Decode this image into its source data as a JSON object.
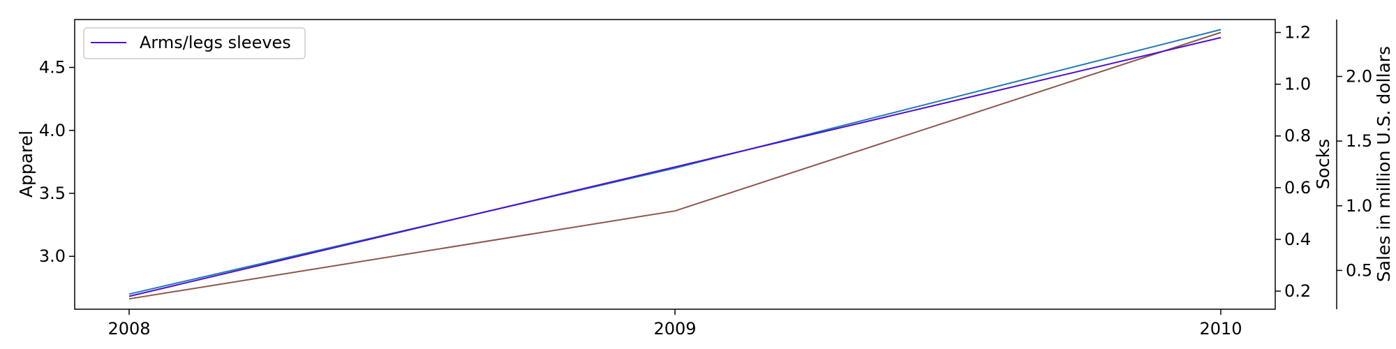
{
  "chart_data": {
    "type": "line",
    "x": [
      "2008",
      "2009",
      "2010"
    ],
    "xticks": [
      "2008",
      "2009",
      "2010"
    ],
    "axes": {
      "left": {
        "label": "Apparel",
        "ylim": [
          2.58,
          4.88
        ],
        "ticks": [
          "3.0",
          "3.5",
          "4.0",
          "4.5"
        ],
        "tick_values": [
          3.0,
          3.5,
          4.0,
          4.5
        ]
      },
      "right1": {
        "label": "Socks",
        "ylim": [
          0.13,
          1.25
        ],
        "ticks": [
          "0.2",
          "0.4",
          "0.6",
          "0.8",
          "1.0",
          "1.2"
        ],
        "tick_values": [
          0.2,
          0.4,
          0.6,
          0.8,
          1.0,
          1.2
        ]
      },
      "right2": {
        "label": "Sales in million U.S. dollars",
        "ylim": [
          0.2,
          2.44
        ],
        "ticks": [
          "0.5",
          "1.0",
          "1.5",
          "2.0"
        ],
        "tick_values": [
          0.5,
          1.0,
          1.5,
          2.0
        ]
      }
    },
    "series": [
      {
        "axis": "left",
        "color": "#1f77b4",
        "values": [
          2.7,
          3.7,
          4.8
        ]
      },
      {
        "axis": "right1",
        "color": "#8c564b",
        "values": [
          0.17,
          0.51,
          1.2
        ]
      },
      {
        "name": "Arms/legs sleeves",
        "axis": "right2",
        "color": "#4b0fd0",
        "values": [
          0.3,
          1.3,
          2.3
        ]
      }
    ],
    "legend": {
      "position": "upper-left",
      "entries": [
        "Arms/legs sleeves"
      ]
    },
    "grid": false
  }
}
